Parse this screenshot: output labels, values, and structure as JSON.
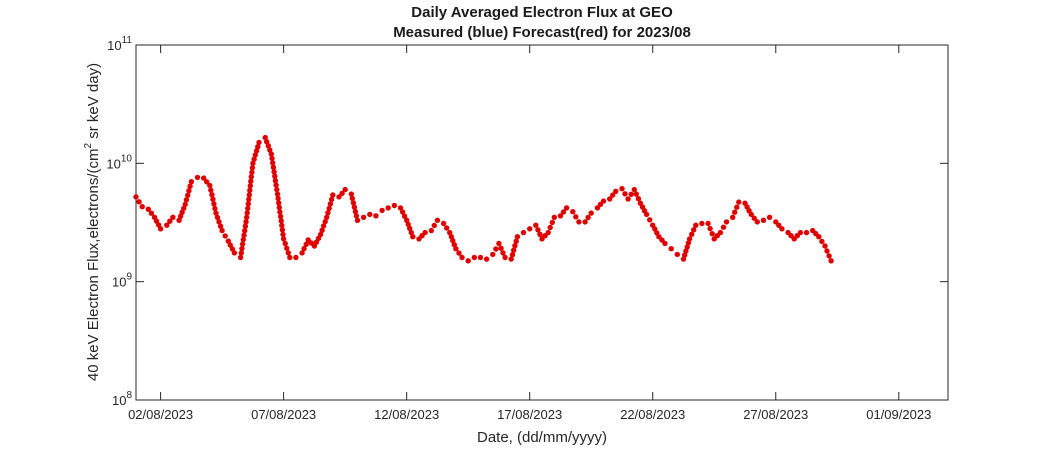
{
  "chart_data": {
    "type": "scatter",
    "title": "Daily Averaged Electron Flux at GEO",
    "subtitle": "Measured (blue) Forecast(red) for 2023/08",
    "xlabel": "Date, (dd/mm/yyyy)",
    "ylabel_prefix": "40 keV Electron Flux,electrons/(cm",
    "ylabel_sup": "2",
    "ylabel_suffix": " sr keV day)",
    "y_scale": "log",
    "ylim": [
      100000000,
      100000000000
    ],
    "y_ticks": [
      {
        "value": 100000000,
        "base": "10",
        "exp": "8"
      },
      {
        "value": 1000000000,
        "base": "10",
        "exp": "9"
      },
      {
        "value": 10000000000,
        "base": "10",
        "exp": "10"
      },
      {
        "value": 100000000000,
        "base": "10",
        "exp": "11"
      }
    ],
    "xlim": [
      "2023-08-01",
      "2023-09-03"
    ],
    "x_ticks": [
      {
        "date": "2023-08-02",
        "label": "02/08/2023"
      },
      {
        "date": "2023-08-07",
        "label": "07/08/2023"
      },
      {
        "date": "2023-08-12",
        "label": "12/08/2023"
      },
      {
        "date": "2023-08-17",
        "label": "17/08/2023"
      },
      {
        "date": "2023-08-22",
        "label": "22/08/2023"
      },
      {
        "date": "2023-08-27",
        "label": "27/08/2023"
      },
      {
        "date": "2023-09-01",
        "label": "01/09/2023"
      }
    ],
    "grid": false,
    "series": [
      {
        "color": "#e00000",
        "points": [
          [
            "2023-08-01 00:00",
            5200000000.0
          ],
          [
            "2023-08-01 06:00",
            4300000000.0
          ],
          [
            "2023-08-01 12:00",
            4100000000.0
          ],
          [
            "2023-08-01 18:00",
            3500000000.0
          ],
          [
            "2023-08-02 00:00",
            2800000000.0
          ],
          [
            "2023-08-02 06:00",
            3000000000.0
          ],
          [
            "2023-08-02 12:00",
            3500000000.0
          ],
          [
            "2023-08-02 18:00",
            3300000000.0
          ],
          [
            "2023-08-03 00:00",
            4500000000.0
          ],
          [
            "2023-08-03 06:00",
            7000000000.0
          ],
          [
            "2023-08-03 12:00",
            7600000000.0
          ],
          [
            "2023-08-03 18:00",
            7500000000.0
          ],
          [
            "2023-08-04 00:00",
            6500000000.0
          ],
          [
            "2023-08-04 06:00",
            3800000000.0
          ],
          [
            "2023-08-04 12:00",
            2700000000.0
          ],
          [
            "2023-08-04 18:00",
            2200000000.0
          ],
          [
            "2023-08-05 00:00",
            1750000000.0
          ],
          [
            "2023-08-05 06:00",
            1600000000.0
          ],
          [
            "2023-08-05 12:00",
            3500000000.0
          ],
          [
            "2023-08-05 18:00",
            10000000000.0
          ],
          [
            "2023-08-06 00:00",
            15000000000.0
          ],
          [
            "2023-08-06 06:00",
            16500000000.0
          ],
          [
            "2023-08-06 12:00",
            12000000000.0
          ],
          [
            "2023-08-06 18:00",
            5500000000.0
          ],
          [
            "2023-08-07 00:00",
            2300000000.0
          ],
          [
            "2023-08-07 06:00",
            1600000000.0
          ],
          [
            "2023-08-07 12:00",
            1600000000.0
          ],
          [
            "2023-08-07 18:00",
            1750000000.0
          ],
          [
            "2023-08-08 00:00",
            2250000000.0
          ],
          [
            "2023-08-08 06:00",
            2000000000.0
          ],
          [
            "2023-08-08 12:00",
            2500000000.0
          ],
          [
            "2023-08-08 18:00",
            3500000000.0
          ],
          [
            "2023-08-09 00:00",
            5400000000.0
          ],
          [
            "2023-08-09 06:00",
            5200000000.0
          ],
          [
            "2023-08-09 12:00",
            6000000000.0
          ],
          [
            "2023-08-09 18:00",
            5500000000.0
          ],
          [
            "2023-08-10 00:00",
            3300000000.0
          ],
          [
            "2023-08-10 06:00",
            3500000000.0
          ],
          [
            "2023-08-10 12:00",
            3700000000.0
          ],
          [
            "2023-08-10 18:00",
            3600000000.0
          ],
          [
            "2023-08-11 00:00",
            4000000000.0
          ],
          [
            "2023-08-11 06:00",
            4200000000.0
          ],
          [
            "2023-08-11 12:00",
            4400000000.0
          ],
          [
            "2023-08-11 18:00",
            4200000000.0
          ],
          [
            "2023-08-12 00:00",
            3300000000.0
          ],
          [
            "2023-08-12 06:00",
            2400000000.0
          ],
          [
            "2023-08-12 12:00",
            2300000000.0
          ],
          [
            "2023-08-12 18:00",
            2600000000.0
          ],
          [
            "2023-08-13 00:00",
            2700000000.0
          ],
          [
            "2023-08-13 06:00",
            3300000000.0
          ],
          [
            "2023-08-13 12:00",
            3100000000.0
          ],
          [
            "2023-08-13 18:00",
            2600000000.0
          ],
          [
            "2023-08-14 00:00",
            1900000000.0
          ],
          [
            "2023-08-14 06:00",
            1600000000.0
          ],
          [
            "2023-08-14 12:00",
            1500000000.0
          ],
          [
            "2023-08-14 18:00",
            1600000000.0
          ],
          [
            "2023-08-15 00:00",
            1600000000.0
          ],
          [
            "2023-08-15 06:00",
            1550000000.0
          ],
          [
            "2023-08-15 12:00",
            1700000000.0
          ],
          [
            "2023-08-15 18:00",
            2100000000.0
          ],
          [
            "2023-08-16 00:00",
            1600000000.0
          ],
          [
            "2023-08-16 06:00",
            1550000000.0
          ],
          [
            "2023-08-16 12:00",
            2400000000.0
          ],
          [
            "2023-08-16 18:00",
            2600000000.0
          ],
          [
            "2023-08-17 00:00",
            2800000000.0
          ],
          [
            "2023-08-17 06:00",
            3000000000.0
          ],
          [
            "2023-08-17 12:00",
            2300000000.0
          ],
          [
            "2023-08-17 18:00",
            2600000000.0
          ],
          [
            "2023-08-18 00:00",
            3500000000.0
          ],
          [
            "2023-08-18 06:00",
            3600000000.0
          ],
          [
            "2023-08-18 12:00",
            4200000000.0
          ],
          [
            "2023-08-18 18:00",
            3900000000.0
          ],
          [
            "2023-08-19 00:00",
            3200000000.0
          ],
          [
            "2023-08-19 06:00",
            3200000000.0
          ],
          [
            "2023-08-19 12:00",
            3800000000.0
          ],
          [
            "2023-08-19 18:00",
            4200000000.0
          ],
          [
            "2023-08-20 00:00",
            4800000000.0
          ],
          [
            "2023-08-20 06:00",
            5000000000.0
          ],
          [
            "2023-08-20 12:00",
            5800000000.0
          ],
          [
            "2023-08-20 18:00",
            6100000000.0
          ],
          [
            "2023-08-21 00:00",
            5000000000.0
          ],
          [
            "2023-08-21 06:00",
            6000000000.0
          ],
          [
            "2023-08-21 12:00",
            4600000000.0
          ],
          [
            "2023-08-21 18:00",
            3700000000.0
          ],
          [
            "2023-08-22 00:00",
            3000000000.0
          ],
          [
            "2023-08-22 06:00",
            2400000000.0
          ],
          [
            "2023-08-22 12:00",
            2100000000.0
          ],
          [
            "2023-08-22 18:00",
            1900000000.0
          ],
          [
            "2023-08-23 00:00",
            1700000000.0
          ],
          [
            "2023-08-23 06:00",
            1550000000.0
          ],
          [
            "2023-08-23 12:00",
            2300000000.0
          ],
          [
            "2023-08-23 18:00",
            3000000000.0
          ],
          [
            "2023-08-24 00:00",
            3100000000.0
          ],
          [
            "2023-08-24 06:00",
            3100000000.0
          ],
          [
            "2023-08-24 12:00",
            2300000000.0
          ],
          [
            "2023-08-24 18:00",
            2600000000.0
          ],
          [
            "2023-08-25 00:00",
            3200000000.0
          ],
          [
            "2023-08-25 06:00",
            3500000000.0
          ],
          [
            "2023-08-25 12:00",
            4700000000.0
          ],
          [
            "2023-08-25 18:00",
            4600000000.0
          ],
          [
            "2023-08-26 00:00",
            3700000000.0
          ],
          [
            "2023-08-26 06:00",
            3200000000.0
          ],
          [
            "2023-08-26 12:00",
            3300000000.0
          ],
          [
            "2023-08-26 18:00",
            3500000000.0
          ],
          [
            "2023-08-27 00:00",
            3200000000.0
          ],
          [
            "2023-08-27 06:00",
            2800000000.0
          ],
          [
            "2023-08-27 12:00",
            2600000000.0
          ],
          [
            "2023-08-27 18:00",
            2300000000.0
          ],
          [
            "2023-08-28 00:00",
            2600000000.0
          ],
          [
            "2023-08-28 06:00",
            2600000000.0
          ],
          [
            "2023-08-28 12:00",
            2700000000.0
          ],
          [
            "2023-08-28 18:00",
            2400000000.0
          ],
          [
            "2023-08-29 00:00",
            2000000000.0
          ],
          [
            "2023-08-29 06:00",
            1500000000.0
          ]
        ]
      }
    ]
  }
}
